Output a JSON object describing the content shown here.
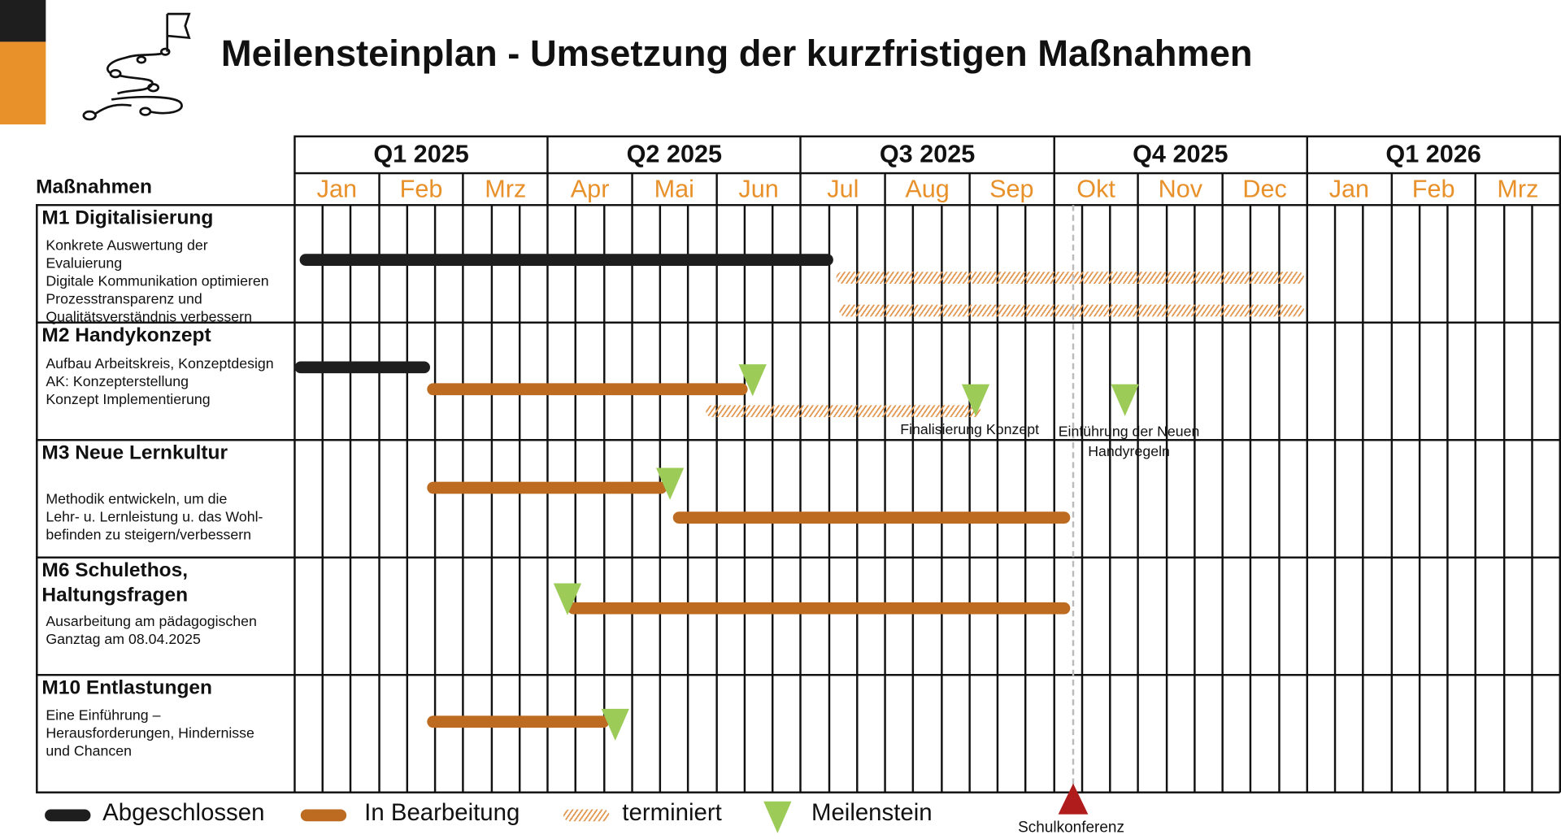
{
  "title": "Meilensteinplan - Umsetzung der kurzfristigen Maßnahmen",
  "colors": {
    "completed": "#1e1e1e",
    "in_progress": "#bd6b21",
    "scheduled": "#e39a55",
    "milestone": "#9ccc57",
    "event": "#b01c1c",
    "month_text": "#e8912a",
    "accent_bar": "#e8912a"
  },
  "logo_icon": "winding-path-flag-icon",
  "header": {
    "measures_label": "Maßnahmen",
    "quarters": [
      "Q1 2025",
      "Q2 2025",
      "Q3 2025",
      "Q4 2025",
      "Q1 2026"
    ],
    "months": [
      "Jan",
      "Feb",
      "Mrz",
      "Apr",
      "Mai",
      "Jun",
      "Jul",
      "Aug",
      "Sep",
      "Okt",
      "Nov",
      "Dec",
      "Jan",
      "Feb",
      "Mrz"
    ]
  },
  "sections": [
    {
      "title": "M1 Digitalisierung",
      "items": [
        "Konkrete Auswertung der",
        "Evaluierung",
        "Digitale Kommunikation optimieren",
        "Prozesstransparenz und",
        "Qualitätsverständnis verbessern"
      ]
    },
    {
      "title": "M2 Handykonzept",
      "items": [
        "Aufbau Arbeitskreis, Konzeptdesign",
        "AK: Konzepterstellung",
        "Konzept Implementierung"
      ]
    },
    {
      "title": "M3 Neue Lernkultur",
      "items": [
        "Methodik entwickeln, um die",
        "Lehr- u. Lernleistung u. das Wohl-",
        "befinden zu steigern/verbessern"
      ]
    },
    {
      "title": "M6 Schulethos, Haltungsfragen",
      "items": [
        "Ausarbeitung am pädagogischen",
        "Ganztag am 08.04.2025"
      ]
    },
    {
      "title": "M10 Entlastungen",
      "items": [
        "Eine Einführung –",
        "Herausforderungen, Hindernisse",
        "und Chancen"
      ]
    }
  ],
  "chart_data": {
    "type": "gantt",
    "bars": [
      {
        "section": 0,
        "status": "completed",
        "start": "2025-01-03",
        "end": "2025-07-13"
      },
      {
        "section": 0,
        "status": "scheduled",
        "start": "2025-07-14",
        "end": "2025-12-31"
      },
      {
        "section": 0,
        "status": "scheduled",
        "start": "2025-07-15",
        "end": "2025-12-31"
      },
      {
        "section": 1,
        "status": "completed",
        "start": "2025-01-01",
        "end": "2025-02-18"
      },
      {
        "section": 1,
        "status": "in_progress",
        "start": "2025-02-17",
        "end": "2025-06-12"
      },
      {
        "section": 1,
        "status": "scheduled",
        "start": "2025-05-28",
        "end": "2025-09-05"
      },
      {
        "section": 2,
        "status": "in_progress",
        "start": "2025-02-17",
        "end": "2025-05-14"
      },
      {
        "section": 2,
        "status": "in_progress",
        "start": "2025-05-16",
        "end": "2025-10-07"
      },
      {
        "section": 3,
        "status": "in_progress",
        "start": "2025-04-08",
        "end": "2025-10-07"
      },
      {
        "section": 4,
        "status": "in_progress",
        "start": "2025-02-17",
        "end": "2025-04-23"
      }
    ],
    "milestones": [
      {
        "section": 1,
        "date": "2025-06-14",
        "label": ""
      },
      {
        "section": 1,
        "date": "2025-09-03",
        "label": "Finalisierung Konzept"
      },
      {
        "section": 1,
        "date": "2025-10-27",
        "label": "Einführung der Neuen Handyregeln"
      },
      {
        "section": 2,
        "date": "2025-05-15",
        "label": ""
      },
      {
        "section": 3,
        "date": "2025-04-08",
        "label": ""
      },
      {
        "section": 4,
        "date": "2025-04-25",
        "label": ""
      }
    ],
    "event": {
      "date": "2025-10-08",
      "label": "Schulkonferenz"
    }
  },
  "labels": {
    "finalisierung": "Finalisierung Konzept",
    "einfuehrung_1": "Einführung der Neuen",
    "einfuehrung_2": "Handyregeln",
    "schulkonferenz": "Schulkonferenz"
  },
  "legend": {
    "completed": "Abgeschlossen",
    "in_progress": "In Bearbeitung",
    "scheduled": "terminiert",
    "milestone": "Meilenstein"
  }
}
